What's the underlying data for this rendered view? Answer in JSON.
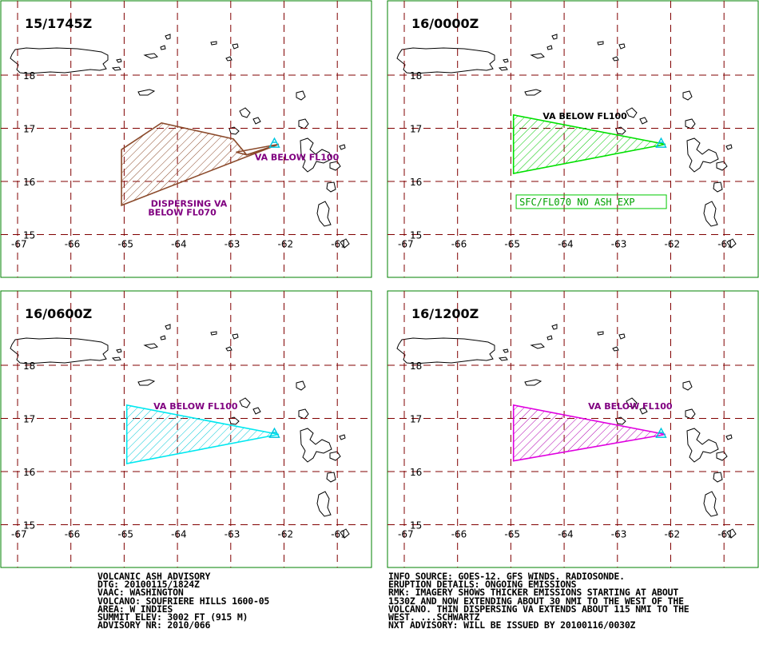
{
  "panels": [
    {
      "time": "15/1745Z",
      "outline_color": "#8b4a2b",
      "labels": [
        {
          "text": "VA BELOW FL100",
          "color": "#800080",
          "lon": -62.55,
          "lat": 16.4
        },
        {
          "text": "DISPERSING VA",
          "color": "#800080",
          "lon": -64.5,
          "lat": 15.53
        },
        {
          "text": "BELOW FL070",
          "color": "#800080",
          "lon": -64.55,
          "lat": 15.36
        }
      ],
      "polygons": [
        [
          [
            -62.1,
            16.7
          ],
          [
            -62.7,
            16.5
          ],
          [
            -62.95,
            16.8
          ],
          [
            -64.3,
            17.1
          ],
          [
            -65.05,
            16.6
          ],
          [
            -65.05,
            15.55
          ],
          [
            -62.1,
            16.7
          ]
        ],
        [
          [
            -62.1,
            16.7
          ],
          [
            -62.9,
            16.55
          ],
          [
            -62.7,
            16.5
          ],
          [
            -62.1,
            16.7
          ]
        ]
      ],
      "fill_hatch": true,
      "nae_label": ""
    },
    {
      "time": "16/0000Z",
      "outline_color": "#00e000",
      "labels": [
        {
          "text": "VA BELOW FL100",
          "color": "#000000",
          "lon": -64.4,
          "lat": 17.17
        }
      ],
      "polygons": [
        [
          [
            -62.1,
            16.7
          ],
          [
            -64.95,
            17.25
          ],
          [
            -64.95,
            16.15
          ],
          [
            -62.1,
            16.7
          ]
        ]
      ],
      "fill_hatch": true,
      "nae_label": "SFC/FL070 NO ASH EXP"
    },
    {
      "time": "16/0600Z",
      "outline_color": "#00e8f0",
      "labels": [
        {
          "text": "VA BELOW FL100",
          "color": "#800080",
          "lon": -64.45,
          "lat": 17.17
        }
      ],
      "polygons": [
        [
          [
            -62.1,
            16.7
          ],
          [
            -64.95,
            17.25
          ],
          [
            -64.95,
            16.15
          ],
          [
            -62.1,
            16.7
          ]
        ]
      ],
      "fill_hatch": true,
      "nae_label": ""
    },
    {
      "time": "16/1200Z",
      "outline_color": "#e000e0",
      "labels": [
        {
          "text": "VA BELOW FL100",
          "color": "#800080",
          "lon": -63.55,
          "lat": 17.17
        }
      ],
      "polygons": [
        [
          [
            -62.1,
            16.7
          ],
          [
            -64.95,
            17.25
          ],
          [
            -64.95,
            16.2
          ],
          [
            -62.1,
            16.7
          ]
        ]
      ],
      "fill_hatch": true,
      "nae_label": ""
    }
  ],
  "grid": {
    "lons": [
      -67,
      -66,
      -65,
      -64,
      -63,
      -62,
      -61
    ],
    "lon_labels": [
      "-67",
      "-66",
      "-65",
      "-64",
      "-63",
      "-62",
      "-61"
    ],
    "lats": [
      18,
      17,
      16,
      15
    ],
    "lat_labels": [
      "18",
      "17",
      "16",
      "15"
    ]
  },
  "volcano": {
    "name": "SOUFRIERE HILLS",
    "lon": -62.18,
    "lat": 16.72
  },
  "advisory_left": [
    "VOLCANIC ASH ADVISORY",
    "DTG: 20100115/1824Z",
    "VAAC: WASHINGTON",
    "VOLCANO: SOUFRIERE HILLS 1600-05",
    "AREA: W_INDIES",
    "SUMMIT ELEV: 3002 FT (915 M)",
    "ADVISORY NR: 2010/066"
  ],
  "advisory_right": [
    "INFO SOURCE: GOES-12. GFS WINDS. RADIOSONDE.",
    "ERUPTION DETAILS: ONGOING EMISSIONS",
    "RMK: IMAGERY SHOWS THICKER EMISSIONS STARTING AT ABOUT",
    "1530Z AND NOW EXTENDING ABOUT 30 NMI TO THE WEST OF THE",
    "VOLCANO. THIN DISPERSING VA EXTENDS ABOUT 115 NMI TO THE",
    "WEST. ...SCHWARTZ",
    "NXT ADVISORY: WILL BE ISSUED BY 20100116/0030Z"
  ],
  "colors": {
    "frame": "#008000",
    "grid": "#800000",
    "land_outline": "#000000",
    "volcano_marker": "#00c8e0"
  }
}
